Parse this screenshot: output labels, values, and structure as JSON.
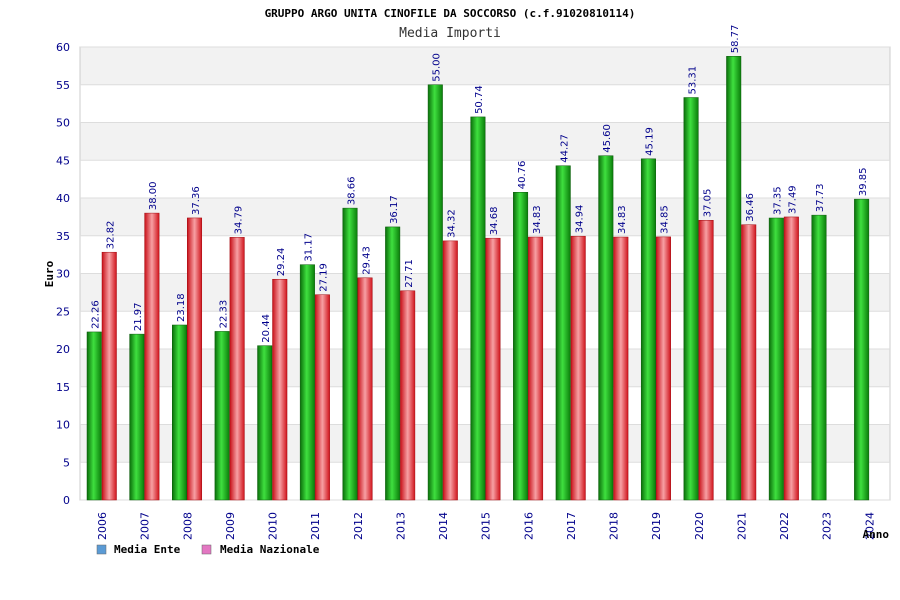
{
  "chart_data": {
    "type": "bar",
    "title": "GRUPPO ARGO UNITA CINOFILE DA SOCCORSO (c.f.91020810114)",
    "subtitle": "Media Importi",
    "xlabel": "Anno",
    "ylabel": "Euro",
    "ylim": [
      0,
      60
    ],
    "yticks": [
      "0",
      "5",
      "10",
      "15",
      "20",
      "25",
      "30",
      "35",
      "40",
      "45",
      "50",
      "55",
      "60"
    ],
    "grid": true,
    "legend_position": "bottom-left",
    "categories": [
      "2006",
      "2007",
      "2008",
      "2009",
      "2010",
      "2011",
      "2012",
      "2013",
      "2014",
      "2015",
      "2016",
      "2017",
      "2018",
      "2019",
      "2020",
      "2021",
      "2022",
      "2023",
      "2024"
    ],
    "series": [
      {
        "name": "Media Ente",
        "legend_color": "#5b9bd5",
        "bar_color": "#11a011",
        "values": [
          22.26,
          21.97,
          23.18,
          22.33,
          20.44,
          31.17,
          38.66,
          36.17,
          55.0,
          50.74,
          40.76,
          44.27,
          45.6,
          45.19,
          53.31,
          58.77,
          37.35,
          37.73,
          39.85
        ],
        "labels": [
          "22.26",
          "21.97",
          "23.18",
          "22.33",
          "20.44",
          "31.17",
          "38.66",
          "36.17",
          "55.00",
          "50.74",
          "40.76",
          "44.27",
          "45.60",
          "45.19",
          "53.31",
          "58.77",
          "37.35",
          "37.73",
          "39.85"
        ]
      },
      {
        "name": "Media Nazionale",
        "legend_color": "#e377c2",
        "bar_color": "#e8202a",
        "values": [
          32.82,
          38.0,
          37.36,
          34.79,
          29.24,
          27.19,
          29.43,
          27.71,
          34.32,
          34.68,
          34.83,
          34.94,
          34.83,
          34.85,
          37.05,
          36.46,
          37.49,
          null,
          null
        ],
        "labels": [
          "32.82",
          "38.00",
          "37.36",
          "34.79",
          "29.24",
          "27.19",
          "29.43",
          "27.71",
          "34.32",
          "34.68",
          "34.83",
          "34.94",
          "34.83",
          "34.85",
          "37.05",
          "36.46",
          "37.49",
          null,
          null
        ]
      }
    ]
  }
}
